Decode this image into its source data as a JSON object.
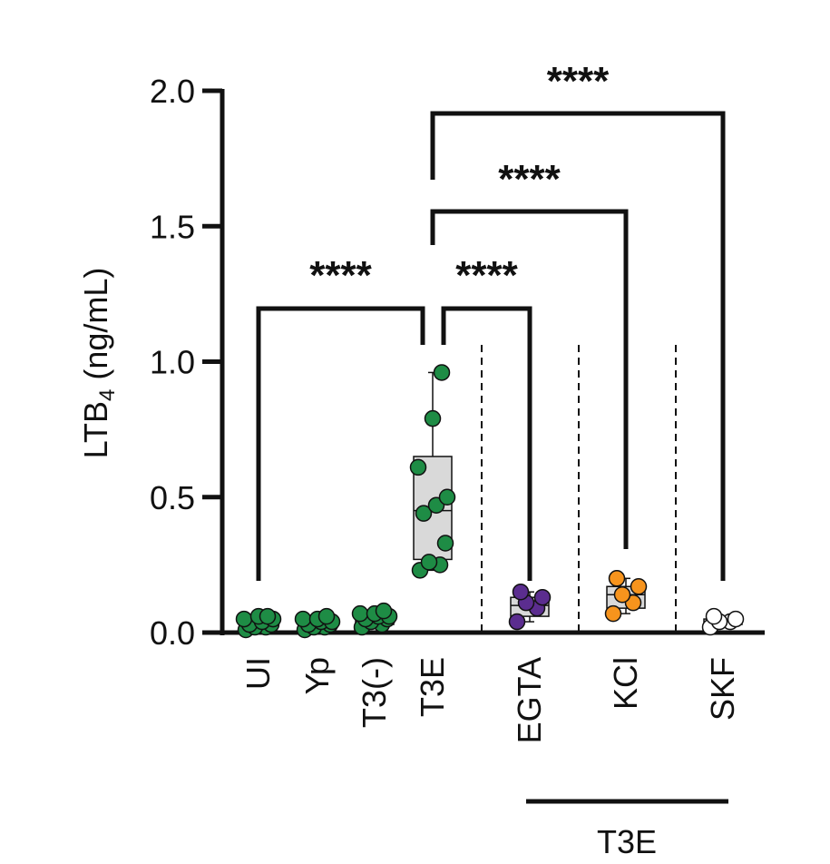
{
  "chart_data": {
    "type": "box",
    "ylabel": "LTB",
    "ylabel_sub": "4",
    "ylabel_unit": " (ng/mL)",
    "ylim": [
      0,
      2.0
    ],
    "yticks": [
      "0.0",
      "0.5",
      "1.0",
      "1.5",
      "2.0"
    ],
    "yticks_values": [
      0,
      0.5,
      1.0,
      1.5,
      2.0
    ],
    "categories": [
      "UI",
      "Yp",
      "T3(-)",
      "T3E",
      "EGTA",
      "KCl",
      "SKF"
    ],
    "group_label": "T3E",
    "colors": {
      "UI": "#1e8c45",
      "Yp": "#1e8c45",
      "T3(-)": "#1e8c45",
      "T3E": "#1e8c45",
      "EGTA": "#5b2d8f",
      "KCl": "#f7941d",
      "SKF": "#ffffff",
      "box_fill": "#d9d9d9"
    },
    "boxes": [
      {
        "name": "UI",
        "min": 0.01,
        "q1": 0.02,
        "median": 0.03,
        "q3": 0.05,
        "max": 0.06,
        "points": [
          0.01,
          0.02,
          0.02,
          0.03,
          0.03,
          0.04,
          0.05,
          0.05,
          0.06,
          0.06
        ]
      },
      {
        "name": "Yp",
        "min": 0.01,
        "q1": 0.02,
        "median": 0.03,
        "q3": 0.05,
        "max": 0.06,
        "points": [
          0.01,
          0.02,
          0.02,
          0.03,
          0.03,
          0.04,
          0.04,
          0.05,
          0.05,
          0.06
        ]
      },
      {
        "name": "T3(-)",
        "min": 0.02,
        "q1": 0.03,
        "median": 0.05,
        "q3": 0.07,
        "max": 0.08,
        "points": [
          0.02,
          0.03,
          0.04,
          0.05,
          0.05,
          0.06,
          0.06,
          0.07,
          0.07,
          0.08
        ]
      },
      {
        "name": "T3E",
        "min": 0.23,
        "q1": 0.27,
        "median": 0.45,
        "q3": 0.65,
        "max": 0.96,
        "points": [
          0.23,
          0.25,
          0.26,
          0.33,
          0.44,
          0.47,
          0.5,
          0.61,
          0.79,
          0.96
        ]
      },
      {
        "name": "EGTA",
        "min": 0.04,
        "q1": 0.06,
        "median": 0.1,
        "q3": 0.13,
        "max": 0.15,
        "points": [
          0.04,
          0.09,
          0.11,
          0.13,
          0.15
        ]
      },
      {
        "name": "KCl",
        "min": 0.07,
        "q1": 0.09,
        "median": 0.14,
        "q3": 0.17,
        "max": 0.2,
        "points": [
          0.07,
          0.11,
          0.14,
          0.17,
          0.2
        ]
      },
      {
        "name": "SKF",
        "min": 0.02,
        "q1": 0.03,
        "median": 0.04,
        "q3": 0.05,
        "max": 0.06,
        "points": [
          0.02,
          0.04,
          0.04,
          0.05,
          0.06
        ]
      }
    ],
    "significance": [
      {
        "from": "UI",
        "to": "T3E",
        "label": "****"
      },
      {
        "from": "T3E",
        "to": "EGTA",
        "label": "****"
      },
      {
        "from": "T3E",
        "to": "KCl",
        "label": "****"
      },
      {
        "from": "T3E",
        "to": "SKF",
        "label": "****"
      }
    ]
  }
}
